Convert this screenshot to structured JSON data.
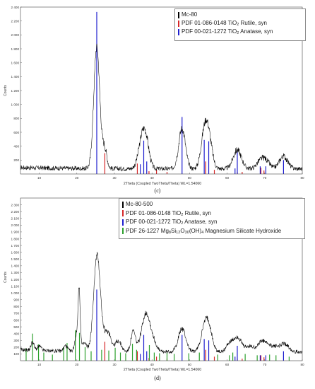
{
  "chart_data": [
    {
      "type": "line",
      "panel_label": "(c)",
      "xlabel": "2Theta (Coupled TwoTheta/Theta) WL=1.54060",
      "ylabel": "Counts",
      "xlim": [
        5,
        80
      ],
      "ylim": [
        0,
        2400
      ],
      "x_ticks": [
        10,
        20,
        30,
        40,
        50,
        60,
        70,
        80
      ],
      "y_ticks": [
        200,
        400,
        600,
        800,
        1000,
        1200,
        1400,
        1600,
        1800,
        2000,
        2200,
        2400
      ],
      "y_tick_labels": [
        "200",
        "400",
        "600",
        "800",
        "1 000",
        "1 200",
        "1 400",
        "1 600",
        "1 800",
        "2 000",
        "2 200",
        "2 400"
      ],
      "legend": [
        {
          "label": "Mc-80",
          "color": "#000000"
        },
        {
          "label_pre": "PDF 01-086-0148 TiO",
          "sub": "2",
          "label_post": " Rutile, syn",
          "color": "#d62728"
        },
        {
          "label_pre": "PDF 00-021-1272 TiO",
          "sub": "2",
          "label_post": " Anatase, syn",
          "color": "#1f1fcf"
        }
      ],
      "pattern_peaks": [
        {
          "x": 25.3,
          "h": 1750,
          "w": 0.8
        },
        {
          "x": 27.4,
          "h": 280,
          "w": 0.6
        },
        {
          "x": 36.9,
          "h": 120,
          "w": 0.9
        },
        {
          "x": 37.8,
          "h": 420,
          "w": 1.0
        },
        {
          "x": 38.6,
          "h": 150,
          "w": 0.8
        },
        {
          "x": 48.0,
          "h": 580,
          "w": 0.9
        },
        {
          "x": 53.9,
          "h": 470,
          "w": 0.9
        },
        {
          "x": 55.1,
          "h": 410,
          "w": 0.9
        },
        {
          "x": 62.7,
          "h": 270,
          "w": 1.1
        },
        {
          "x": 68.8,
          "h": 100,
          "w": 1.0
        },
        {
          "x": 70.3,
          "h": 110,
          "w": 1.0
        },
        {
          "x": 75.0,
          "h": 180,
          "w": 1.1
        }
      ],
      "pattern_baseline": 75,
      "series": [
        {
          "name": "PDF 01-086-0148 TiO2 Rutile, syn",
          "color": "#d62728",
          "x": [
            27.45,
            36.1,
            39.2,
            41.2,
            44.0,
            54.3,
            56.6,
            62.7,
            64.0,
            69.0,
            69.8
          ],
          "y": [
            300,
            150,
            40,
            60,
            30,
            180,
            60,
            30,
            30,
            90,
            50
          ]
        },
        {
          "name": "PDF 00-021-1272 TiO2 Anatase, syn",
          "color": "#1f1fcf",
          "x": [
            25.3,
            36.9,
            37.8,
            38.6,
            48.0,
            53.9,
            55.1,
            62.1,
            62.7,
            68.8,
            70.3,
            75.0
          ],
          "y": [
            2330,
            140,
            480,
            180,
            820,
            490,
            470,
            80,
            330,
            110,
            110,
            200
          ]
        }
      ]
    },
    {
      "type": "line",
      "panel_label": "(d)",
      "xlabel": "2Theta (Coupled TwoTheta/Theta) WL=1.54060",
      "ylabel": "Counts",
      "xlim": [
        5,
        80
      ],
      "ylim": [
        0,
        2400
      ],
      "x_ticks": [
        10,
        20,
        30,
        40,
        50,
        60,
        70,
        80
      ],
      "y_ticks": [
        100,
        200,
        300,
        400,
        500,
        600,
        700,
        800,
        900,
        1000,
        1100,
        1200,
        1300,
        1400,
        1500,
        1600,
        1700,
        1800,
        1900,
        2000,
        2100,
        2200,
        2300
      ],
      "y_tick_labels": [
        "100",
        "200",
        "300",
        "400",
        "500",
        "600",
        "700",
        "800",
        "900",
        "1 000",
        "1 100",
        "1 200",
        "1 300",
        "1 400",
        "1 500",
        "1 600",
        "1 700",
        "1 800",
        "1 900",
        "2 000",
        "2 100",
        "2 200",
        "2 300"
      ],
      "legend": [
        {
          "label": "Mc-80-500",
          "color": "#000000"
        },
        {
          "label_pre": "PDF 01-086-0148 TiO",
          "sub": "2",
          "label_post": " Rutile, syn",
          "color": "#d62728"
        },
        {
          "label_pre": "PDF 00-021-1272 TiO",
          "sub": "2",
          "label_post": " Anatase, syn",
          "color": "#1f1fcf"
        },
        {
          "label_pre": "PDF 26-1227 Mg",
          "sub": "8",
          "label_mid": "Si",
          "sub2": "12",
          "label_mid2": "O",
          "sub3": "30",
          "label_mid3": "(OH)",
          "sub4": "4",
          "label_post": " Magnesium Silicate Hydroxide",
          "color": "#2ca02c"
        }
      ],
      "pattern_peaks": [
        {
          "x": 8.2,
          "h": 120,
          "w": 0.4
        },
        {
          "x": 10.0,
          "h": 60,
          "w": 0.5
        },
        {
          "x": 17.0,
          "h": 80,
          "w": 0.5
        },
        {
          "x": 19.8,
          "h": 220,
          "w": 0.4
        },
        {
          "x": 20.6,
          "h": 900,
          "w": 0.3
        },
        {
          "x": 22.0,
          "h": 120,
          "w": 0.6
        },
        {
          "x": 25.4,
          "h": 1430,
          "w": 0.9
        },
        {
          "x": 27.4,
          "h": 120,
          "w": 0.6
        },
        {
          "x": 28.5,
          "h": 260,
          "w": 0.7
        },
        {
          "x": 31.0,
          "h": 160,
          "w": 0.8
        },
        {
          "x": 35.0,
          "h": 300,
          "w": 0.6
        },
        {
          "x": 37.9,
          "h": 370,
          "w": 1.0
        },
        {
          "x": 39.0,
          "h": 300,
          "w": 0.9
        },
        {
          "x": 40.5,
          "h": 120,
          "w": 0.8
        },
        {
          "x": 48.0,
          "h": 340,
          "w": 1.0
        },
        {
          "x": 54.0,
          "h": 330,
          "w": 1.0
        },
        {
          "x": 55.2,
          "h": 280,
          "w": 0.9
        },
        {
          "x": 60.5,
          "h": 110,
          "w": 0.8
        },
        {
          "x": 62.7,
          "h": 220,
          "w": 1.1
        },
        {
          "x": 66.0,
          "h": 80,
          "w": 1.0
        },
        {
          "x": 68.8,
          "h": 110,
          "w": 1.0
        },
        {
          "x": 70.3,
          "h": 100,
          "w": 1.0
        },
        {
          "x": 72.5,
          "h": 70,
          "w": 1.0
        },
        {
          "x": 75.2,
          "h": 120,
          "w": 1.2
        }
      ],
      "pattern_baseline": 130,
      "series": [
        {
          "name": "PDF 01-086-0148 TiO2 Rutile, syn",
          "color": "#d62728",
          "x": [
            27.45,
            36.1,
            39.2,
            41.2,
            44.0,
            54.3,
            56.6,
            62.7,
            64.0,
            69.0,
            69.8
          ],
          "y": [
            280,
            140,
            40,
            60,
            30,
            160,
            60,
            30,
            30,
            80,
            50
          ]
        },
        {
          "name": "PDF 00-021-1272 TiO2 Anatase, syn",
          "color": "#1f1fcf",
          "x": [
            25.3,
            36.9,
            37.8,
            38.6,
            48.0,
            53.9,
            55.1,
            62.1,
            62.7,
            68.8,
            70.3,
            75.0
          ],
          "y": [
            1050,
            100,
            380,
            140,
            380,
            320,
            300,
            60,
            220,
            80,
            80,
            140
          ]
        },
        {
          "name": "PDF 26-1227 Mg8Si12O30(OH)4 Magnesium Silicate Hydroxide",
          "color": "#2ca02c",
          "x": [
            6.5,
            8.2,
            9.8,
            11.2,
            13.5,
            16.5,
            17.4,
            19.6,
            20.7,
            22.2,
            23.8,
            26.6,
            28.5,
            30.2,
            31.6,
            33.0,
            34.8,
            35.9,
            39.3,
            40.6,
            42.0,
            44.0,
            45.9,
            49.8,
            52.6,
            57.5,
            60.6,
            61.5,
            64.8,
            68.0,
            71.3,
            73.0,
            76.5
          ],
          "y": [
            180,
            400,
            240,
            120,
            90,
            200,
            260,
            450,
            410,
            200,
            140,
            160,
            150,
            190,
            120,
            110,
            250,
            160,
            230,
            120,
            110,
            120,
            100,
            110,
            120,
            90,
            80,
            120,
            100,
            80,
            90,
            80,
            60
          ]
        }
      ]
    }
  ],
  "panels": [
    {
      "caption": "(c)"
    },
    {
      "caption": "(d)"
    }
  ]
}
